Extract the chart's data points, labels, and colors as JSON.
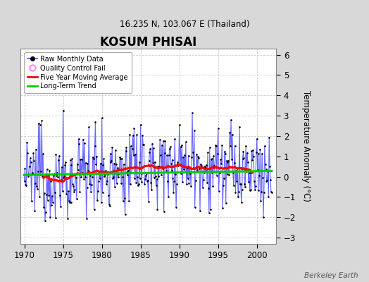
{
  "title": "KOSUM PHISAI",
  "subtitle": "16.235 N, 103.067 E (Thailand)",
  "ylabel": "Temperature Anomaly (°C)",
  "watermark": "Berkeley Earth",
  "xlim": [
    1969.5,
    2002.5
  ],
  "ylim": [
    -3.3,
    6.3
  ],
  "yticks": [
    -3,
    -2,
    -1,
    0,
    1,
    2,
    3,
    4,
    5,
    6
  ],
  "xticks": [
    1970,
    1975,
    1980,
    1985,
    1990,
    1995,
    2000
  ],
  "background_color": "#d8d8d8",
  "plot_bg_color": "#ffffff",
  "raw_line_color": "#5555ff",
  "raw_dot_color": "#000000",
  "moving_avg_color": "#ff0000",
  "trend_color": "#00cc00",
  "qc_fail_color": "#ff88ff",
  "grid_color": "#cccccc",
  "seed": 12345,
  "n_months": 384,
  "start_year": 1970.0,
  "trend_slope": 0.012,
  "trend_intercept": -0.05
}
